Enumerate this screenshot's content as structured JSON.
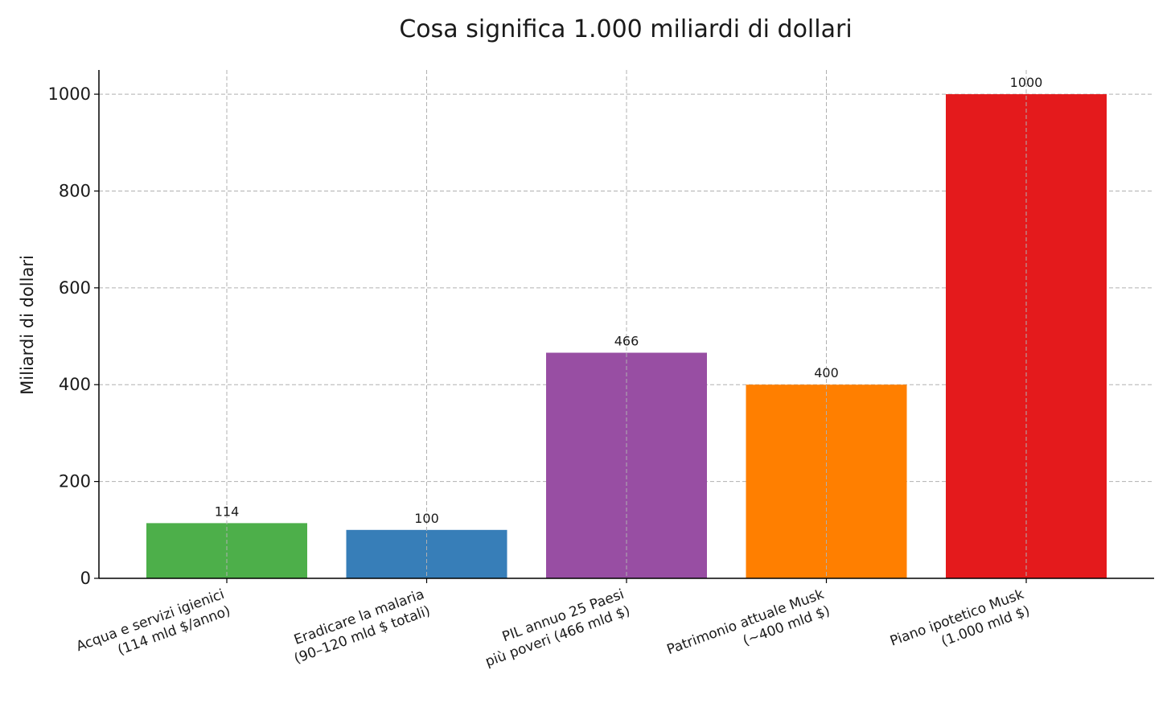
{
  "chart_data": {
    "type": "bar",
    "title": "Cosa significa 1.000 miliardi di dollari",
    "xlabel": "",
    "ylabel": "Miliardi di dollari",
    "ylim": [
      0,
      1050
    ],
    "yticks": [
      0,
      200,
      400,
      600,
      800,
      1000
    ],
    "grid": true,
    "categories": [
      "Acqua e servizi igienici\n(114 mld $/anno)",
      "Eradicare la malaria\n(90–120 mld $ totali)",
      "PIL annuo 25 Paesi\npiù poveri (466 mld $)",
      "Patrimonio attuale Musk\n(~400 mld $)",
      "Piano ipotetico Musk\n(1.000 mld $)"
    ],
    "values": [
      114,
      100,
      466,
      400,
      1000
    ],
    "value_labels": [
      "114",
      "100",
      "466",
      "400",
      "1000"
    ],
    "colors": [
      "#4daf4a",
      "#377eb8",
      "#984ea3",
      "#ff7f00",
      "#e41a1c"
    ]
  }
}
